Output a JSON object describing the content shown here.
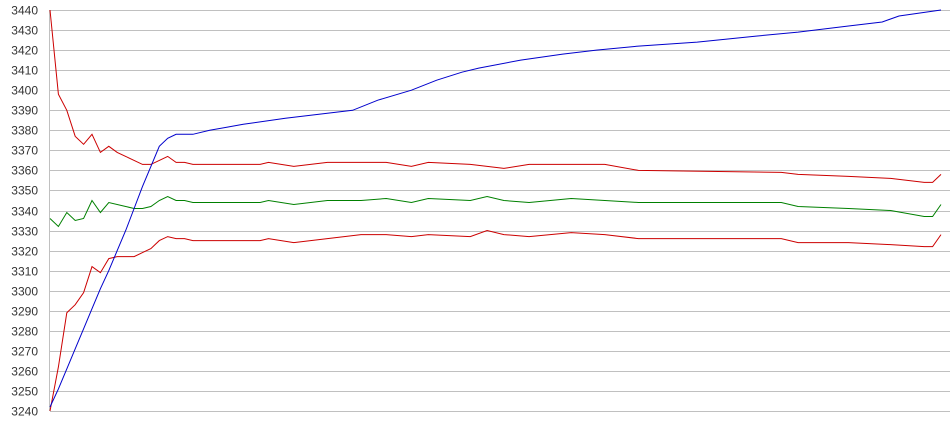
{
  "chart_data": {
    "type": "line",
    "title": "",
    "xlabel": "",
    "ylabel": "",
    "ylim": [
      3240,
      3440
    ],
    "xlim": [
      0,
      106
    ],
    "y_ticks": [
      3240,
      3250,
      3260,
      3270,
      3280,
      3290,
      3300,
      3310,
      3320,
      3330,
      3340,
      3350,
      3360,
      3370,
      3380,
      3390,
      3400,
      3410,
      3420,
      3430,
      3440
    ],
    "grid": "horizontal",
    "colors": {
      "grid": "#c0c0c0",
      "upper": "#cc0000",
      "middle": "#008000",
      "lower": "#cc0000",
      "trend": "#0000cc"
    },
    "series": [
      {
        "color": "#cc0000",
        "points": [
          [
            0,
            3440
          ],
          [
            1,
            3398
          ],
          [
            2,
            3390
          ],
          [
            3,
            3377
          ],
          [
            4,
            3373
          ],
          [
            5,
            3378
          ],
          [
            6,
            3369
          ],
          [
            7,
            3372
          ],
          [
            8,
            3369
          ],
          [
            9,
            3367
          ],
          [
            10,
            3365
          ],
          [
            11,
            3363
          ],
          [
            12,
            3363
          ],
          [
            13,
            3365
          ],
          [
            14,
            3367
          ],
          [
            15,
            3364
          ],
          [
            16,
            3364
          ],
          [
            17,
            3363
          ],
          [
            25,
            3363
          ],
          [
            26,
            3364
          ],
          [
            29,
            3362
          ],
          [
            33,
            3364
          ],
          [
            37,
            3364
          ],
          [
            40,
            3364
          ],
          [
            43,
            3362
          ],
          [
            45,
            3364
          ],
          [
            50,
            3363
          ],
          [
            54,
            3361
          ],
          [
            57,
            3363
          ],
          [
            62,
            3363
          ],
          [
            66,
            3363
          ],
          [
            70,
            3360
          ],
          [
            87,
            3359
          ],
          [
            89,
            3358
          ],
          [
            95,
            3357
          ],
          [
            100,
            3356
          ],
          [
            104,
            3354
          ],
          [
            105,
            3354
          ],
          [
            106,
            3358
          ]
        ]
      },
      {
        "color": "#008000",
        "points": [
          [
            0,
            3336
          ],
          [
            1,
            3332
          ],
          [
            2,
            3339
          ],
          [
            3,
            3335
          ],
          [
            4,
            3336
          ],
          [
            5,
            3345
          ],
          [
            6,
            3339
          ],
          [
            7,
            3344
          ],
          [
            9,
            3342
          ],
          [
            10,
            3341
          ],
          [
            11,
            3341
          ],
          [
            12,
            3342
          ],
          [
            13,
            3345
          ],
          [
            14,
            3347
          ],
          [
            15,
            3345
          ],
          [
            16,
            3345
          ],
          [
            17,
            3344
          ],
          [
            25,
            3344
          ],
          [
            26,
            3345
          ],
          [
            29,
            3343
          ],
          [
            33,
            3345
          ],
          [
            37,
            3345
          ],
          [
            40,
            3346
          ],
          [
            43,
            3344
          ],
          [
            45,
            3346
          ],
          [
            50,
            3345
          ],
          [
            52,
            3347
          ],
          [
            54,
            3345
          ],
          [
            57,
            3344
          ],
          [
            62,
            3346
          ],
          [
            66,
            3345
          ],
          [
            70,
            3344
          ],
          [
            87,
            3344
          ],
          [
            89,
            3342
          ],
          [
            95,
            3341
          ],
          [
            100,
            3340
          ],
          [
            104,
            3337
          ],
          [
            105,
            3337
          ],
          [
            106,
            3343
          ]
        ]
      },
      {
        "color": "#cc0000",
        "points": [
          [
            0,
            3240
          ],
          [
            1,
            3262
          ],
          [
            2,
            3289
          ],
          [
            3,
            3293
          ],
          [
            4,
            3299
          ],
          [
            5,
            3312
          ],
          [
            6,
            3309
          ],
          [
            7,
            3316
          ],
          [
            8,
            3317
          ],
          [
            10,
            3317
          ],
          [
            11,
            3319
          ],
          [
            12,
            3321
          ],
          [
            13,
            3325
          ],
          [
            14,
            3327
          ],
          [
            15,
            3326
          ],
          [
            16,
            3326
          ],
          [
            17,
            3325
          ],
          [
            25,
            3325
          ],
          [
            26,
            3326
          ],
          [
            29,
            3324
          ],
          [
            33,
            3326
          ],
          [
            37,
            3328
          ],
          [
            40,
            3328
          ],
          [
            43,
            3327
          ],
          [
            45,
            3328
          ],
          [
            50,
            3327
          ],
          [
            52,
            3330
          ],
          [
            54,
            3328
          ],
          [
            57,
            3327
          ],
          [
            62,
            3329
          ],
          [
            66,
            3328
          ],
          [
            70,
            3326
          ],
          [
            87,
            3326
          ],
          [
            89,
            3324
          ],
          [
            95,
            3324
          ],
          [
            100,
            3323
          ],
          [
            104,
            3322
          ],
          [
            105,
            3322
          ],
          [
            106,
            3328
          ]
        ]
      },
      {
        "color": "#0000cc",
        "points": [
          [
            0,
            3242
          ],
          [
            1,
            3251
          ],
          [
            2,
            3261
          ],
          [
            3,
            3271
          ],
          [
            4,
            3281
          ],
          [
            5,
            3291
          ],
          [
            6,
            3301
          ],
          [
            7,
            3310
          ],
          [
            8,
            3320
          ],
          [
            9,
            3330
          ],
          [
            10,
            3341
          ],
          [
            11,
            3352
          ],
          [
            12,
            3362
          ],
          [
            13,
            3372
          ],
          [
            14,
            3376
          ],
          [
            15,
            3378
          ],
          [
            17,
            3378
          ],
          [
            19,
            3380
          ],
          [
            23,
            3383
          ],
          [
            28,
            3386
          ],
          [
            32,
            3388
          ],
          [
            36,
            3390
          ],
          [
            39,
            3395
          ],
          [
            43,
            3400
          ],
          [
            46,
            3405
          ],
          [
            49,
            3409
          ],
          [
            51,
            3411
          ],
          [
            56,
            3415
          ],
          [
            61,
            3418
          ],
          [
            65,
            3420
          ],
          [
            70,
            3422
          ],
          [
            77,
            3424
          ],
          [
            84,
            3427
          ],
          [
            89,
            3429
          ],
          [
            95,
            3432
          ],
          [
            99,
            3434
          ],
          [
            101,
            3437
          ],
          [
            106,
            3440
          ]
        ]
      }
    ]
  }
}
